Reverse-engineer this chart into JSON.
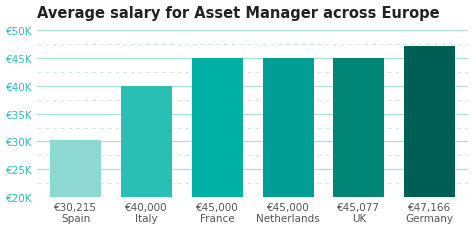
{
  "title": "Average salary for Asset Manager across Europe",
  "categories": [
    "Spain",
    "Italy",
    "France",
    "Netherlands",
    "UK",
    "Germany"
  ],
  "values": [
    30215,
    40000,
    45000,
    45000,
    45077,
    47166
  ],
  "labels": [
    "€30,215",
    "€40,000",
    "€45,000",
    "€45,000",
    "€45,077",
    "€47,166"
  ],
  "bar_colors": [
    "#8dd9d1",
    "#29bfb5",
    "#00b0a5",
    "#009e94",
    "#008577",
    "#005f55"
  ],
  "ylim": [
    20000,
    51000
  ],
  "yticks": [
    20000,
    25000,
    30000,
    35000,
    40000,
    45000,
    50000
  ],
  "ytick_labels": [
    "€20K",
    "€25K",
    "€30K",
    "€35K",
    "€40K",
    "€45K",
    "€50K"
  ],
  "solid_grid_color": "#b0ddd8",
  "dashed_grid_color": "#c8e8e5",
  "background_color": "#ffffff",
  "title_fontsize": 10.5,
  "tick_fontsize": 7.5,
  "label_fontsize": 7.5,
  "ytick_color": "#29bfb5"
}
